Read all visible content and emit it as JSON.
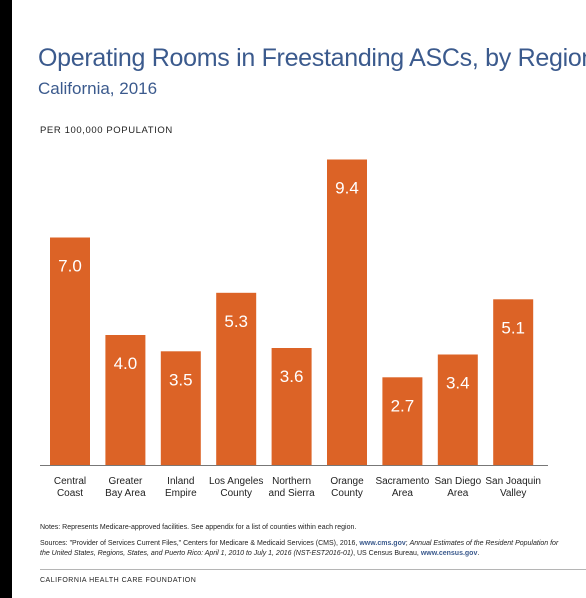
{
  "chart_data": {
    "type": "bar",
    "title": "Operating Rooms in Freestanding ASCs, by Region",
    "subtitle": "California, 2016",
    "ylabel": "PER 100,000 POPULATION",
    "categories": [
      [
        "Central",
        "Coast"
      ],
      [
        "Greater",
        "Bay Area"
      ],
      [
        "Inland",
        "Empire"
      ],
      [
        "Los Angeles",
        "County"
      ],
      [
        "Northern",
        "and Sierra"
      ],
      [
        "Orange",
        "County"
      ],
      [
        "Sacramento",
        "Area"
      ],
      [
        "San Diego",
        "Area"
      ],
      [
        "San Joaquin",
        "Valley"
      ]
    ],
    "values": [
      7.0,
      4.0,
      3.5,
      5.3,
      3.6,
      9.4,
      2.7,
      3.4,
      5.1
    ],
    "value_labels": [
      "7.0",
      "4.0",
      "3.5",
      "5.3",
      "3.6",
      "9.4",
      "2.7",
      "3.4",
      "5.1"
    ],
    "ylim": [
      0,
      10
    ],
    "grid": false,
    "legend": "none",
    "bar_color": "#dc6326",
    "label_color": "#ffffff"
  },
  "notes": "Notes: Represents Medicare-approved facilities. See appendix for a list of counties within each region.",
  "sources": {
    "part1": "Sources: \"Provider of Services Current Files,\" Centers for Medicare & Medicaid Services (CMS), 2016, ",
    "link1": "www.cms.gov",
    "part2": "; ",
    "italic": "Annual Estimates of the Resident Population for the United States, Regions, States, and Puerto Rico: April 1, 2010 to July 1, 2016 (NST-EST2016-01)",
    "part3": ", US Census Bureau, ",
    "link2": "www.census.gov",
    "part4": "."
  },
  "footer": "CALIFORNIA HEALTH CARE FOUNDATION",
  "colors": {
    "title": "#3b5a8d",
    "bar": "#dc6326",
    "axis": "#777777"
  }
}
